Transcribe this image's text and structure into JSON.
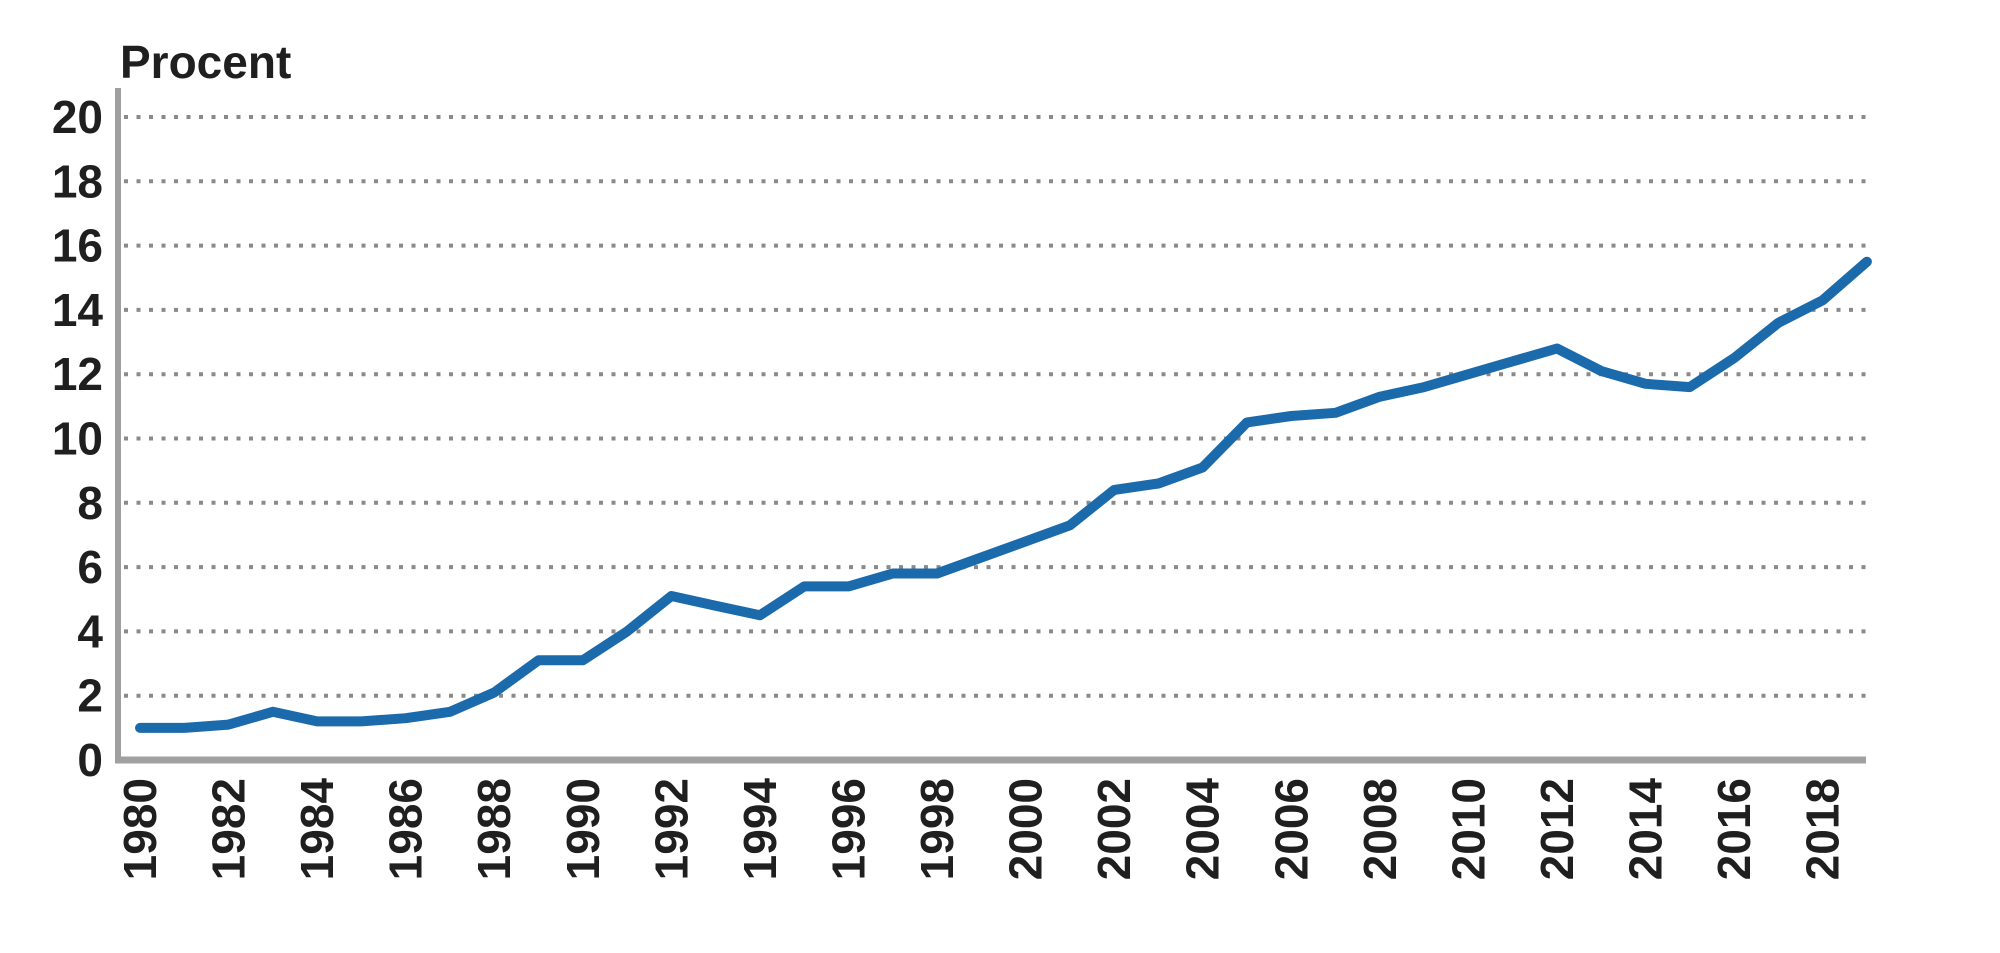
{
  "chart_data": {
    "type": "line",
    "title": "Procent",
    "xlabel": "",
    "ylabel": "Procent",
    "x": [
      1980,
      1981,
      1982,
      1983,
      1984,
      1985,
      1986,
      1987,
      1988,
      1989,
      1990,
      1991,
      1992,
      1993,
      1994,
      1995,
      1996,
      1997,
      1998,
      1999,
      2000,
      2001,
      2002,
      2003,
      2004,
      2005,
      2006,
      2007,
      2008,
      2009,
      2010,
      2011,
      2012,
      2013,
      2014,
      2015,
      2016,
      2017,
      2018,
      2019
    ],
    "series": [
      {
        "name": "Procent",
        "values": [
          1.0,
          1.0,
          1.1,
          1.5,
          1.2,
          1.2,
          1.3,
          1.5,
          2.1,
          3.1,
          3.1,
          4.0,
          5.1,
          4.8,
          4.5,
          5.4,
          5.4,
          5.8,
          5.8,
          6.3,
          6.8,
          7.3,
          8.4,
          8.6,
          9.1,
          10.5,
          10.7,
          10.8,
          11.3,
          11.6,
          12.0,
          12.4,
          12.8,
          12.1,
          11.7,
          11.6,
          12.5,
          13.6,
          14.3,
          15.5
        ],
        "color": "#1b6aab"
      }
    ],
    "ylim": [
      0,
      20
    ],
    "y_ticks": [
      0,
      2,
      4,
      6,
      8,
      10,
      12,
      14,
      16,
      18,
      20
    ],
    "x_tick_labels": [
      "1980",
      "1982",
      "1984",
      "1986",
      "1988",
      "1990",
      "1992",
      "1994",
      "1996",
      "1998",
      "2000",
      "2002",
      "2004",
      "2006",
      "2008",
      "2010",
      "2012",
      "2014",
      "2016",
      "2018"
    ],
    "grid": "dotted-horizontal",
    "legend_position": "none",
    "colors": {
      "line": "#1b6aab",
      "grid_dots": "#8a8a8a",
      "axis": "#a0a0a0",
      "labels": "#1f1f1f",
      "background": "#ffffff"
    }
  }
}
